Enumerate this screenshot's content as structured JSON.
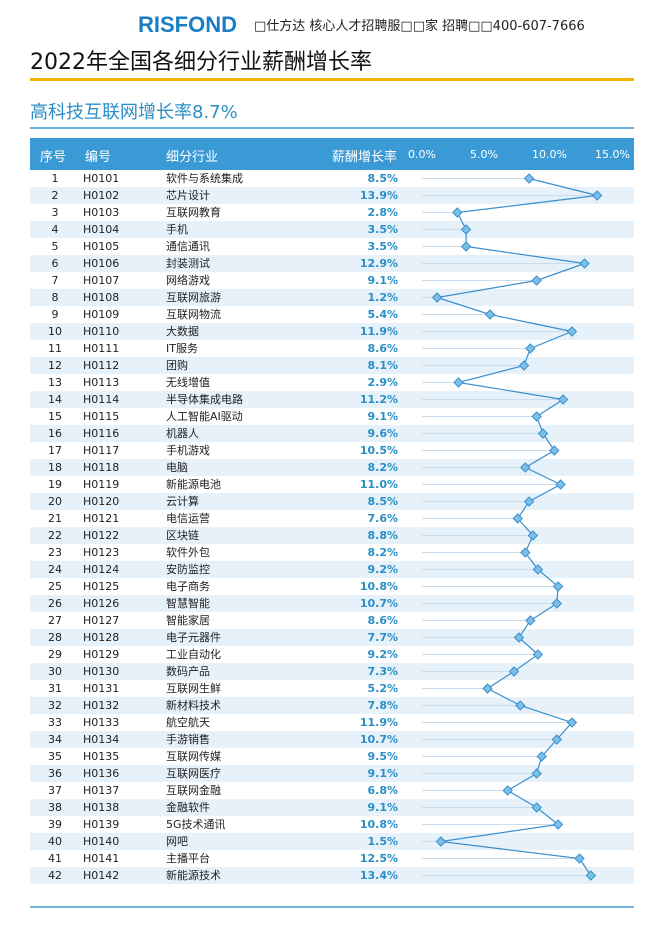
{
  "header": {
    "logo": "RISFOND",
    "tagline": "□仕方达 核心人才招聘服□□家 招聘□□400-607-7666"
  },
  "title": "2022年全国各细分行业薪酬增长率",
  "subtitle": "高科技互联网增长率8.7%",
  "columns": {
    "idx": "序号",
    "code": "编号",
    "name": "细分行业",
    "rate": "薪酬增长率",
    "ticks": [
      "0.0%",
      "5.0%",
      "10.0%",
      "15.0%"
    ]
  },
  "chart_data": {
    "type": "line",
    "x_axis_ticks": [
      0,
      5,
      10,
      15
    ],
    "xlim": [
      0,
      15
    ],
    "marker": "diamond",
    "colors": {
      "line": "#3a8fcf",
      "marker_fill": "#7cc0e8",
      "header": "#3a9ad6",
      "rate_text": "#2a8fc6"
    },
    "rows": [
      {
        "idx": "1",
        "code": "H0101",
        "name": "软件与系统集成",
        "rate_label": "8.5%",
        "value": 8.5
      },
      {
        "idx": "2",
        "code": "H0102",
        "name": "芯片设计",
        "rate_label": "13.9%",
        "value": 13.9
      },
      {
        "idx": "3",
        "code": "H0103",
        "name": "互联网教育",
        "rate_label": "2.8%",
        "value": 2.8
      },
      {
        "idx": "4",
        "code": "H0104",
        "name": "手机",
        "rate_label": "3.5%",
        "value": 3.5
      },
      {
        "idx": "5",
        "code": "H0105",
        "name": "通信通讯",
        "rate_label": "3.5%",
        "value": 3.5
      },
      {
        "idx": "6",
        "code": "H0106",
        "name": "封装测试",
        "rate_label": "12.9%",
        "value": 12.9
      },
      {
        "idx": "7",
        "code": "H0107",
        "name": "网络游戏",
        "rate_label": "9.1%",
        "value": 9.1
      },
      {
        "idx": "8",
        "code": "H0108",
        "name": "互联网旅游",
        "rate_label": "1.2%",
        "value": 1.2
      },
      {
        "idx": "9",
        "code": "H0109",
        "name": "互联网物流",
        "rate_label": "5.4%",
        "value": 5.4
      },
      {
        "idx": "10",
        "code": "H0110",
        "name": "大数据",
        "rate_label": "11.9%",
        "value": 11.9
      },
      {
        "idx": "11",
        "code": "H0111",
        "name": "IT服务",
        "rate_label": "8.6%",
        "value": 8.6
      },
      {
        "idx": "12",
        "code": "H0112",
        "name": "团购",
        "rate_label": "8.1%",
        "value": 8.1
      },
      {
        "idx": "13",
        "code": "H0113",
        "name": "无线增值",
        "rate_label": "2.9%",
        "value": 2.9
      },
      {
        "idx": "14",
        "code": "H0114",
        "name": "半导体集成电路",
        "rate_label": "11.2%",
        "value": 11.2
      },
      {
        "idx": "15",
        "code": "H0115",
        "name": "人工智能AI驱动",
        "rate_label": "9.1%",
        "value": 9.1
      },
      {
        "idx": "16",
        "code": "H0116",
        "name": "机器人",
        "rate_label": "9.6%",
        "value": 9.6
      },
      {
        "idx": "17",
        "code": "H0117",
        "name": "手机游戏",
        "rate_label": "10.5%",
        "value": 10.5
      },
      {
        "idx": "18",
        "code": "H0118",
        "name": "电脑",
        "rate_label": "8.2%",
        "value": 8.2
      },
      {
        "idx": "19",
        "code": "H0119",
        "name": "新能源电池",
        "rate_label": "11.0%",
        "value": 11.0
      },
      {
        "idx": "20",
        "code": "H0120",
        "name": "云计算",
        "rate_label": "8.5%",
        "value": 8.5
      },
      {
        "idx": "21",
        "code": "H0121",
        "name": "电信运营",
        "rate_label": "7.6%",
        "value": 7.6
      },
      {
        "idx": "22",
        "code": "H0122",
        "name": "区块链",
        "rate_label": "8.8%",
        "value": 8.8
      },
      {
        "idx": "23",
        "code": "H0123",
        "name": "软件外包",
        "rate_label": "8.2%",
        "value": 8.2
      },
      {
        "idx": "24",
        "code": "H0124",
        "name": "安防监控",
        "rate_label": "9.2%",
        "value": 9.2
      },
      {
        "idx": "25",
        "code": "H0125",
        "name": "电子商务",
        "rate_label": "10.8%",
        "value": 10.8
      },
      {
        "idx": "26",
        "code": "H0126",
        "name": "智慧智能",
        "rate_label": "10.7%",
        "value": 10.7
      },
      {
        "idx": "27",
        "code": "H0127",
        "name": "智能家居",
        "rate_label": "8.6%",
        "value": 8.6
      },
      {
        "idx": "28",
        "code": "H0128",
        "name": "电子元器件",
        "rate_label": "7.7%",
        "value": 7.7
      },
      {
        "idx": "29",
        "code": "H0129",
        "name": "工业自动化",
        "rate_label": "9.2%",
        "value": 9.2
      },
      {
        "idx": "30",
        "code": "H0130",
        "name": "数码产品",
        "rate_label": "7.3%",
        "value": 7.3
      },
      {
        "idx": "31",
        "code": "H0131",
        "name": "互联网生鲜",
        "rate_label": "5.2%",
        "value": 5.2
      },
      {
        "idx": "32",
        "code": "H0132",
        "name": "新材料技术",
        "rate_label": "7.8%",
        "value": 7.8
      },
      {
        "idx": "33",
        "code": "H0133",
        "name": "航空航天",
        "rate_label": "11.9%",
        "value": 11.9
      },
      {
        "idx": "34",
        "code": "H0134",
        "name": "手游销售",
        "rate_label": "10.7%",
        "value": 10.7
      },
      {
        "idx": "35",
        "code": "H0135",
        "name": "互联网传媒",
        "rate_label": "9.5%",
        "value": 9.5
      },
      {
        "idx": "36",
        "code": "H0136",
        "name": "互联网医疗",
        "rate_label": "9.1%",
        "value": 9.1
      },
      {
        "idx": "37",
        "code": "H0137",
        "name": "互联网金融",
        "rate_label": "6.8%",
        "value": 6.8
      },
      {
        "idx": "38",
        "code": "H0138",
        "name": "金融软件",
        "rate_label": "9.1%",
        "value": 9.1
      },
      {
        "idx": "39",
        "code": "H0139",
        "name": "5G技术通讯",
        "rate_label": "10.8%",
        "value": 10.8
      },
      {
        "idx": "40",
        "code": "H0140",
        "name": "网吧",
        "rate_label": "1.5%",
        "value": 1.5
      },
      {
        "idx": "41",
        "code": "H0141",
        "name": "主播平台",
        "rate_label": "12.5%",
        "value": 12.5
      },
      {
        "idx": "42",
        "code": "H0142",
        "name": "新能源技术",
        "rate_label": "13.4%",
        "value": 13.4
      }
    ]
  }
}
